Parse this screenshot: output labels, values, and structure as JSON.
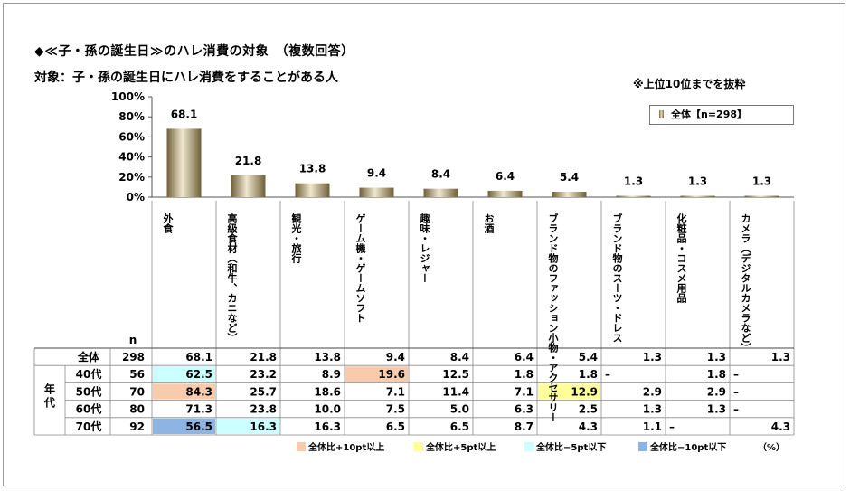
{
  "titles": {
    "line1": "◆≪子・孫の誕生日≫のハレ消費の対象　（複数回答）",
    "line2": "対象：子・孫の誕生日にハレ消費をすることがある人",
    "note": "※上位10位までを抜粋"
  },
  "legend": {
    "label": "全体【n=298】"
  },
  "table": {
    "n_header": "n",
    "group_label": "年代",
    "percent_note": "（%）"
  },
  "bottom_legend": [
    {
      "label": "全体比+10pt以上",
      "color": "#f8cbad"
    },
    {
      "label": "全体比+5pt以上",
      "color": "#ffff99"
    },
    {
      "label": "全体比−5pt以下",
      "color": "#ccffff"
    },
    {
      "label": "全体比−10pt以下",
      "color": "#8db4e2"
    }
  ],
  "chart_data": {
    "type": "bar",
    "categories": [
      "外食",
      "高級食材（和牛、カニなど）",
      "観光・旅行",
      "ゲーム機・ゲームソフト",
      "趣味・レジャー",
      "お酒",
      "ブランド物のファッション小物・アクセサリー",
      "ブランド物のスーツ・ドレス",
      "化粧品・コスメ用品",
      "カメラ（デジタルカメラなど）"
    ],
    "category_display": [
      "外\n食",
      "高\n級\n食\n材\n（\n和\n牛\n、\nカ\nニ\nな\nど\n）",
      "観\n光\n・\n旅\n行",
      "ゲ\nー\nム\n機\n・\nゲ\nー\nム\nソ\nフ\nト",
      "趣\n味\n・\nレ\nジ\nャ\nー",
      "お\n酒",
      "ブ\nラ\nン\nド\n物\nの\nフ\nァ\nッ\nシ\nョ\nン\n小\n物\n・\nア\nク\nセ\nサ\nリ\nー",
      "ブ\nラ\nン\nド\n物\nの\nス\nー\nツ\n・\nド\nレ\nス",
      "化\n粧\n品\n・\nコ\nス\nメ\n用\n品",
      "カ\nメ\nラ\n（\nデ\nジ\nタ\nル\nカ\nメ\nラ\nな\nど\n）"
    ],
    "series": [
      {
        "name": "全体【n=298】",
        "values": [
          68.1,
          21.8,
          13.8,
          9.4,
          8.4,
          6.4,
          5.4,
          1.3,
          1.3,
          1.3
        ]
      }
    ],
    "value_labels": [
      "68.1",
      "21.8",
      "13.8",
      "9.4",
      "8.4",
      "6.4",
      "5.4",
      "1.3",
      "1.3",
      "1.3"
    ],
    "ylim": [
      0,
      100
    ],
    "yticks": [
      "0%",
      "20%",
      "40%",
      "60%",
      "80%",
      "100%"
    ],
    "ytick_values": [
      0,
      20,
      40,
      60,
      80,
      100
    ],
    "rows": [
      {
        "label": "全体",
        "n": "298",
        "values": [
          "68.1",
          "21.8",
          "13.8",
          "9.4",
          "8.4",
          "6.4",
          "5.4",
          "1.3",
          "1.3",
          "1.3"
        ],
        "highlight": [
          "",
          "",
          "",
          "",
          "",
          "",
          "",
          "",
          "",
          ""
        ]
      },
      {
        "label": "40代",
        "n": "56",
        "values": [
          "62.5",
          "23.2",
          "8.9",
          "19.6",
          "12.5",
          "1.8",
          "1.8",
          "–",
          "1.8",
          "–"
        ],
        "highlight": [
          "m5",
          "",
          "",
          "p10",
          "",
          "",
          "",
          "",
          "",
          ""
        ]
      },
      {
        "label": "50代",
        "n": "70",
        "values": [
          "84.3",
          "25.7",
          "18.6",
          "7.1",
          "11.4",
          "7.1",
          "12.9",
          "2.9",
          "2.9",
          "–"
        ],
        "highlight": [
          "p10",
          "",
          "",
          "",
          "",
          "",
          "p5",
          "",
          "",
          ""
        ]
      },
      {
        "label": "60代",
        "n": "80",
        "values": [
          "71.3",
          "23.8",
          "10.0",
          "7.5",
          "5.0",
          "6.3",
          "2.5",
          "1.3",
          "1.3",
          "–"
        ],
        "highlight": [
          "",
          "",
          "",
          "",
          "",
          "",
          "",
          "",
          "",
          ""
        ]
      },
      {
        "label": "70代",
        "n": "92",
        "values": [
          "56.5",
          "16.3",
          "16.3",
          "6.5",
          "6.5",
          "8.7",
          "4.3",
          "1.1",
          "–",
          "4.3"
        ],
        "highlight": [
          "m10",
          "m5",
          "",
          "",
          "",
          "",
          "",
          "",
          "",
          ""
        ]
      }
    ],
    "highlight_colors": {
      "p10": "#f8cbad",
      "p5": "#ffff99",
      "m5": "#ccffff",
      "m10": "#8db4e2"
    },
    "grid": false,
    "legend_position": "top-right"
  }
}
